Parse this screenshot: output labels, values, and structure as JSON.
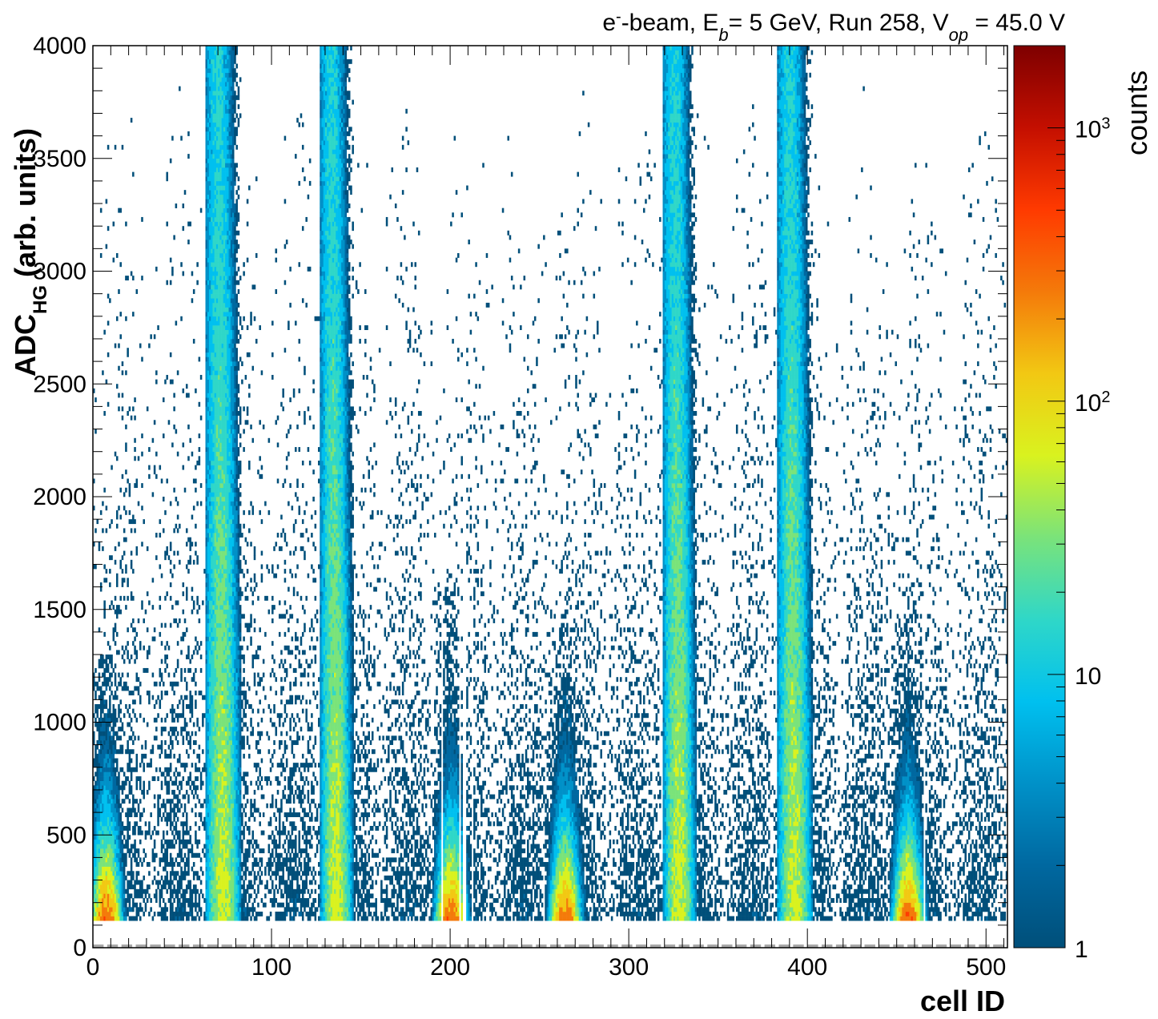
{
  "chart_data": {
    "type": "heatmap",
    "title": "e⁻-beam, E_b= 5 GeV, Run 258, V_op = 45.0 V",
    "xlabel": "cell ID",
    "ylabel": "ADC_HG (arb. units)",
    "zlabel": "counts",
    "xlim": [
      0,
      512
    ],
    "ylim": [
      0,
      4000
    ],
    "zscale": "log",
    "zlim": [
      1,
      2000
    ],
    "x_ticks": [
      "0",
      "100",
      "200",
      "300",
      "400",
      "500"
    ],
    "y_ticks": [
      "0",
      "500",
      "1000",
      "1500",
      "2000",
      "2500",
      "3000",
      "3500",
      "4000"
    ],
    "z_ticks": [
      "1",
      "10",
      "10^2",
      "10^3"
    ],
    "pedestal_adc": 0,
    "dense_bands": [
      {
        "cell_min": 65,
        "cell_max": 80,
        "adc_max": 4000,
        "peak_counts": 60
      },
      {
        "cell_min": 129,
        "cell_max": 143,
        "adc_max": 4000,
        "peak_counts": 60
      },
      {
        "cell_min": 321,
        "cell_max": 335,
        "adc_max": 4000,
        "peak_counts": 60
      },
      {
        "cell_min": 385,
        "cell_max": 400,
        "adc_max": 4000,
        "peak_counts": 60
      }
    ],
    "hot_regions": [
      {
        "cell_min": 0,
        "cell_max": 14,
        "adc_max": 1300,
        "peak_counts": 1000
      },
      {
        "cell_min": 193,
        "cell_max": 207,
        "adc_max": 1600,
        "peak_counts": 1000
      },
      {
        "cell_min": 257,
        "cell_max": 271,
        "adc_max": 1500,
        "peak_counts": 1000
      },
      {
        "cell_min": 449,
        "cell_max": 463,
        "adc_max": 1500,
        "peak_counts": 1000
      }
    ],
    "empty_columns": [
      195,
      205,
      207,
      208,
      212,
      465
    ]
  },
  "colors": {
    "palette": [
      "#004f7a",
      "#0068a0",
      "#0091c8",
      "#00c0ef",
      "#2fd7c8",
      "#7ae37a",
      "#d9f21f",
      "#f2c813",
      "#f47a0a",
      "#ff3a00",
      "#c40f00",
      "#7e0000"
    ],
    "pedestal": "#a8a8a8"
  }
}
